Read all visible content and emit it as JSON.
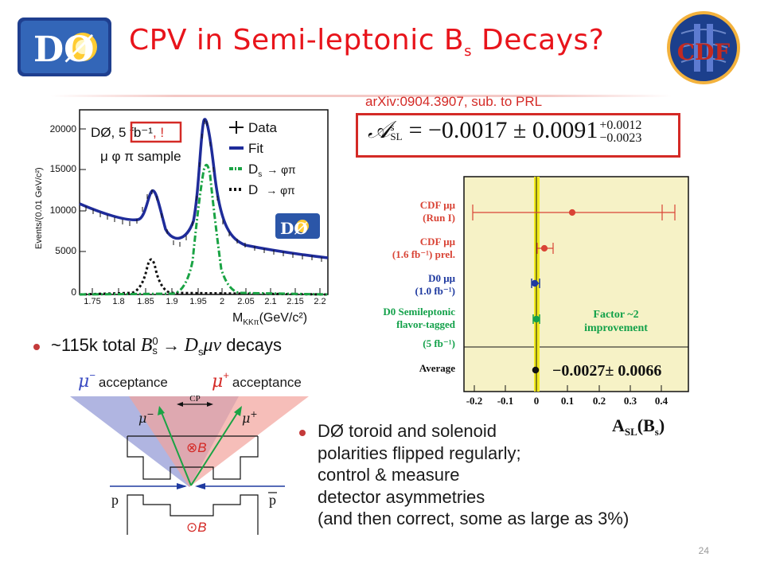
{
  "header": {
    "title_main": "CPV in Semi-leptonic B",
    "title_sub": "s",
    "title_end": " Decays?",
    "logo_left_text": "DØ",
    "logo_right_text": "CDF"
  },
  "mass_plot": {
    "ylabel": "Events/(0.01 GeV/c²)",
    "xlabel": "M",
    "xlabel_sub": "KKπ",
    "xlabel_unit": "(GeV/c²)",
    "y_ticks": [
      "20000",
      "15000",
      "10000",
      "5000",
      "0"
    ],
    "x_ticks": [
      "1.75",
      "1.8",
      "1.85",
      "1.9",
      "1.95",
      "2",
      "2.05",
      "2.1",
      "2.15",
      "2.2"
    ],
    "annotation_prefix": "DØ, ",
    "annotation_boxed": "5 fb⁻¹",
    "annotation_suffix": ", !",
    "sample_label": "μ φ π  sample",
    "legend_data": "Data",
    "legend_fit": "Fit",
    "legend_ds": "D",
    "legend_ds_sub": "s",
    "legend_ds_decay": "→ φπ",
    "legend_d": "D",
    "legend_d_decay": "→ φπ",
    "logo_text": "DØ"
  },
  "result": {
    "arxiv": "arXiv:0904.3907, sub. to PRL",
    "A": "𝒜",
    "A_sup": "s",
    "A_sub": "SL",
    "equation": "= −0.0017 ± 0.0091",
    "err_up": "+0.0012",
    "err_down": "−0.0023"
  },
  "compare_plot": {
    "rows": [
      {
        "l1": "CDF μμ",
        "l2": "(Run I)"
      },
      {
        "l1": "CDF μμ",
        "l2": "(1.6 fb⁻¹) prel."
      },
      {
        "l1": "D0 μμ",
        "l2": "(1.0 fb⁻¹)"
      },
      {
        "l1": "D0 Semileptonic",
        "l2": "flavor-tagged",
        "l3": "(5 fb⁻¹)"
      },
      {
        "l1": "Average"
      }
    ],
    "factor_l1": "Factor ~2",
    "factor_l2": "improvement",
    "average_value": "−0.0027± 0.0066",
    "x_ticks": [
      "-0.2",
      "-0.1",
      "0",
      "0.1",
      "0.2",
      "0.3",
      "0.4"
    ],
    "xlabel": "A",
    "xlabel_sub": "SL",
    "xlabel_paren": "(B",
    "xlabel_paren_sub": "s",
    "xlabel_close": ")"
  },
  "bullet1": {
    "prefix": "~115k total ",
    "B": "B",
    "B_sup": "0",
    "B_sub": "s",
    "arrow": " → ",
    "D": "D",
    "D_sub": "s",
    "mu_nu": "μν",
    "suffix": " decays"
  },
  "detector": {
    "mu_minus": "μ",
    "mu_minus_sup": "−",
    "mu_minus_text": "acceptance",
    "mu_plus": "μ",
    "mu_plus_sup": "+",
    "mu_plus_text": "acceptance",
    "cp_label": "CP",
    "mu_minus_arrow": "μ",
    "mu_minus_arrow_sup": "−",
    "mu_plus_arrow": "μ",
    "mu_plus_arrow_sup": "+",
    "b_top": "⊗B",
    "b_bottom": "⊙B",
    "p": "p",
    "pbar": "p"
  },
  "bullet2": {
    "lines": [
      "DØ toroid and solenoid",
      "polarities flipped regularly;",
      "control & measure",
      "detector asymmetries",
      "(and then correct, some as large as 3%)"
    ]
  },
  "page_number": "24"
}
